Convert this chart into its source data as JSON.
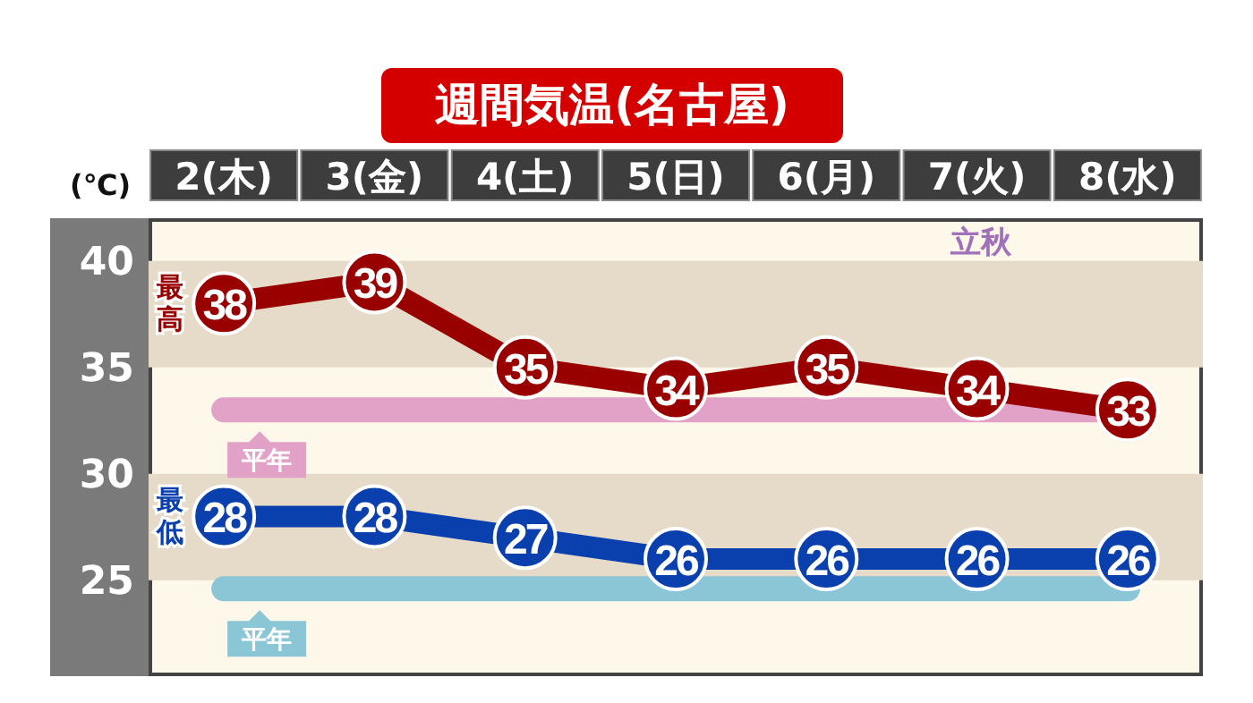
{
  "chart_data": {
    "type": "line",
    "title": "週間気温(名古屋)",
    "ylabel": "(℃)",
    "categories": [
      "2(木)",
      "3(金)",
      "4(土)",
      "5(日)",
      "6(月)",
      "7(火)",
      "8(水)"
    ],
    "series": [
      {
        "name": "最高",
        "color": "#990000",
        "values": [
          38,
          39,
          35,
          34,
          35,
          34,
          33
        ]
      },
      {
        "name": "最低",
        "color": "#0a3fae",
        "values": [
          28,
          28,
          27,
          26,
          26,
          26,
          26
        ]
      }
    ],
    "ylim": [
      20.5,
      42
    ],
    "yticks": [
      25,
      30,
      35,
      40
    ],
    "bands": [
      {
        "axis": "y",
        "from": 35,
        "to": 40,
        "color": "#e6dac8"
      },
      {
        "axis": "y",
        "from": 25,
        "to": 30,
        "color": "#e6dac8"
      }
    ],
    "ref_lines": [
      {
        "axis": "y",
        "value": 33,
        "label": "平年",
        "color": "#e2a2c8"
      },
      {
        "axis": "y",
        "value": 24.6,
        "label": "平年",
        "color": "#8ac6d6"
      }
    ],
    "annotations": [
      "立秋"
    ],
    "data_labels": true,
    "marker": "circle",
    "line_style": "solid",
    "grid": false,
    "legend": false
  }
}
